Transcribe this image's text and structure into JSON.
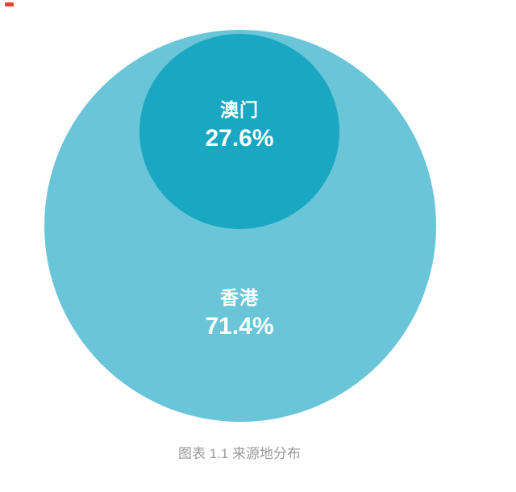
{
  "page": {
    "background": "#FFFFFF",
    "corner_mark": {
      "color": "#E8432D"
    }
  },
  "chart_data": {
    "type": "pie",
    "variant": "nested-bubbles",
    "title": "图表 1.1 来源地分布",
    "categories": [
      "香港",
      "澳门"
    ],
    "values": [
      71.4,
      27.6
    ],
    "unit": "%",
    "series": [
      {
        "name": "香港",
        "value": 71.4,
        "label": "71.4%",
        "color": "#6BC5D9",
        "text_color": "#FFFFFF"
      },
      {
        "name": "澳门",
        "value": 27.6,
        "label": "27.6%",
        "color": "#1AA7C2",
        "text_color": "#FFFFFF"
      }
    ],
    "legend": "none",
    "grid": false,
    "layout": "small bubble nested near top inside large bubble, caption centered below"
  },
  "caption": {
    "text": "图表 1.1 来源地分布",
    "color": "#9A9A9A"
  }
}
